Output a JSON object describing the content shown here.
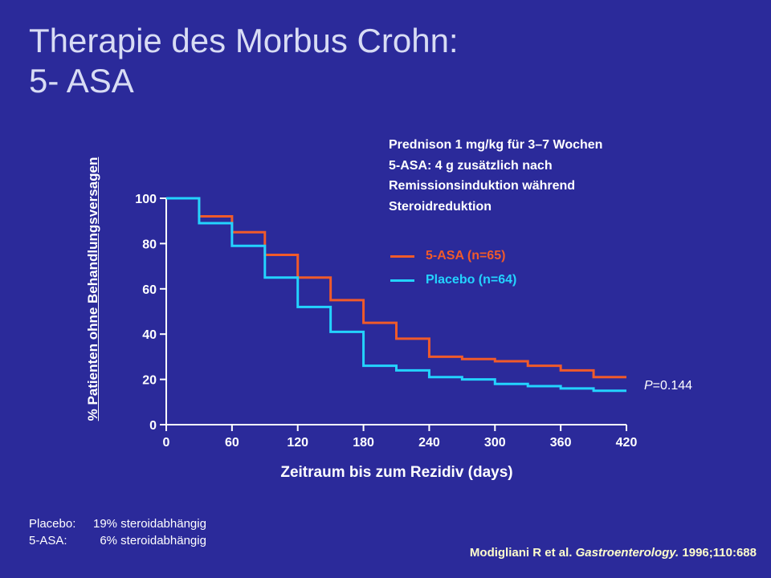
{
  "title": {
    "line1": "Therapie des Morbus Crohn:",
    "line2": "5- ASA"
  },
  "note": {
    "line1": "Prednison 1 mg/kg für 3–7 Wochen",
    "line2": "5-ASA: 4 g zusätzlich nach",
    "line3": "Remissionsinduktion während",
    "line4": "Steroidreduktion"
  },
  "pvalue": {
    "p": "P",
    "rest": "=0.144"
  },
  "footnote": [
    {
      "label": "Placebo:",
      "value": "19% steroidabhängig"
    },
    {
      "label": "5-ASA:",
      "value": "  6% steroidabhängig"
    }
  ],
  "citation": {
    "authors": "Modigliani R et al.",
    "journal": "Gastroenterology.",
    "ref": "1996;110:688"
  },
  "colors": {
    "background": "#2b2a9a",
    "asa": "#f05a2a",
    "placebo": "#23d3ff",
    "axis": "#ffffff"
  },
  "chart_data": {
    "type": "line",
    "step": true,
    "xlabel": "Zeitraum bis zum Rezidiv (days)",
    "ylabel": "% Patienten ohne Behandlungsversagen",
    "xlim": [
      0,
      420
    ],
    "ylim": [
      0,
      100
    ],
    "xticks": [
      0,
      60,
      120,
      180,
      240,
      300,
      360,
      420
    ],
    "yticks": [
      0,
      20,
      40,
      60,
      80,
      100
    ],
    "legend_position": "center-right",
    "series": [
      {
        "name": "5-ASA (n=65)",
        "color": "#f05a2a",
        "x": [
          0,
          30,
          60,
          90,
          120,
          150,
          180,
          210,
          240,
          270,
          300,
          330,
          360,
          390,
          420
        ],
        "y": [
          100,
          92,
          85,
          75,
          65,
          55,
          45,
          38,
          30,
          29,
          28,
          26,
          24,
          21,
          21
        ]
      },
      {
        "name": "Placebo (n=64)",
        "color": "#23d3ff",
        "x": [
          0,
          30,
          60,
          90,
          120,
          150,
          180,
          210,
          240,
          270,
          300,
          330,
          360,
          390,
          420
        ],
        "y": [
          100,
          89,
          79,
          65,
          52,
          41,
          26,
          24,
          21,
          20,
          18,
          17,
          16,
          15,
          15
        ]
      }
    ]
  }
}
